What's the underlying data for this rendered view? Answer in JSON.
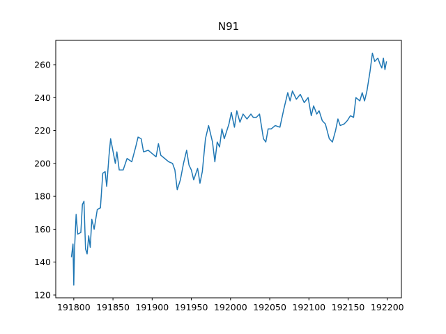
{
  "chart_data": {
    "type": "line",
    "title": "N91",
    "x": [
      191797,
      191799,
      191800,
      191801,
      191803,
      191805,
      191809,
      191811,
      191813,
      191815,
      191817,
      191819,
      191821,
      191823,
      191826,
      191830,
      191834,
      191837,
      191840,
      191842,
      191845,
      191847,
      191851,
      191853,
      191855,
      191858,
      191863,
      191868,
      191874,
      191879,
      191882,
      191886,
      191889,
      191895,
      191900,
      191905,
      191908,
      191911,
      191916,
      191921,
      191926,
      191929,
      191932,
      191936,
      191940,
      191944,
      191947,
      191950,
      191953,
      191958,
      191961,
      191964,
      191968,
      191972,
      191977,
      191980,
      191983,
      191986,
      191989,
      191992,
      191998,
      192001,
      192005,
      192008,
      192012,
      192016,
      192021,
      192026,
      192029,
      192033,
      192037,
      192042,
      192045,
      192048,
      192052,
      192057,
      192063,
      192068,
      192073,
      192076,
      192079,
      192084,
      192089,
      192094,
      192099,
      192103,
      192106,
      192110,
      192113,
      192117,
      192121,
      192126,
      192130,
      192134,
      192137,
      192140,
      192145,
      192149,
      192153,
      192157,
      192160,
      192165,
      192168,
      192171,
      192174,
      192178,
      192181,
      192184,
      192188,
      192191,
      192193,
      192195,
      192197,
      192199
    ],
    "series": [
      {
        "color": "#1f77b4",
        "values": [
          143,
          151,
          126,
          148,
          169,
          157,
          158,
          175,
          177,
          148,
          145,
          156,
          149,
          166,
          160,
          172,
          173,
          194,
          195,
          186,
          205,
          215,
          205,
          200,
          207,
          196,
          196,
          203,
          201,
          210,
          216,
          215,
          207,
          208,
          206,
          204,
          212,
          205,
          203,
          201,
          200,
          196,
          184,
          190,
          200,
          208,
          199,
          196,
          190,
          197,
          188,
          195,
          215,
          223,
          213,
          201,
          213,
          210,
          221,
          215,
          224,
          231,
          222,
          232,
          225,
          230,
          227,
          230,
          228,
          228,
          230,
          215,
          213,
          221,
          221,
          223,
          222,
          233,
          243,
          238,
          244,
          239,
          242,
          237,
          240,
          229,
          235,
          230,
          232,
          226,
          224,
          215,
          213,
          220,
          227,
          223,
          224,
          226,
          229,
          228,
          240,
          238,
          243,
          238,
          244,
          256,
          267,
          262,
          264,
          260,
          258,
          264,
          257,
          262
        ]
      }
    ],
    "xlim": [
      191777,
      192218
    ],
    "ylim": [
      118.3,
      274.8
    ],
    "xticks": [
      191800,
      191850,
      191900,
      191950,
      192000,
      192050,
      192100,
      192150,
      192200
    ],
    "yticks": [
      120,
      140,
      160,
      180,
      200,
      220,
      240,
      260
    ]
  }
}
